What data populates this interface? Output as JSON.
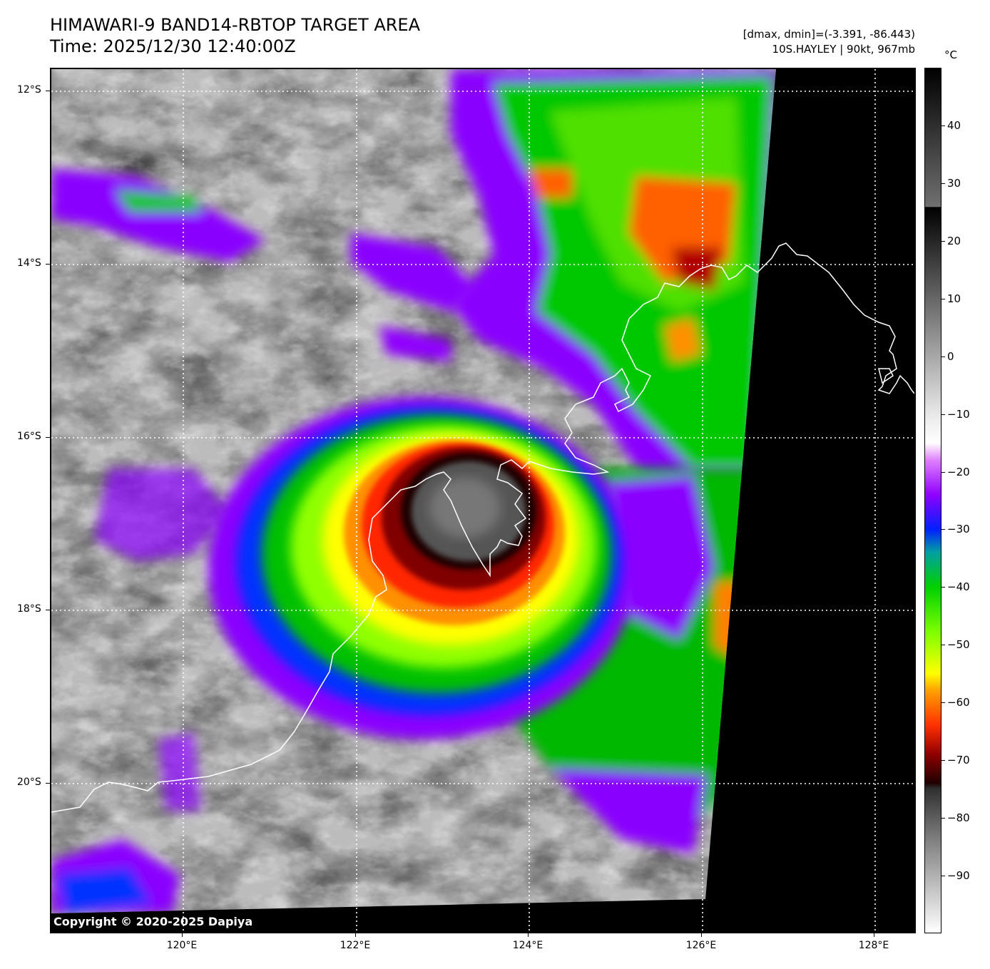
{
  "header": {
    "title_line1": "HIMAWARI-9 BAND14-RBTOP TARGET AREA",
    "title_line2": "Time: 2025/12/30 12:40:00Z",
    "range_text": "[dmax, dmin]=(-3.391, -86.443)",
    "storm_text": "10S.HAYLEY | 90kt, 967mb"
  },
  "map": {
    "copyright": "Copyright © 2020-2025 Dapiya",
    "lat_labels": [
      "12°S",
      "14°S",
      "16°S",
      "18°S",
      "20°S"
    ],
    "lon_labels": [
      "120°E",
      "122°E",
      "124°E",
      "126°E",
      "128°E"
    ],
    "no_data_color": "#000000",
    "coastline_color": "#ffffff",
    "grid_color": "#ffffff"
  },
  "colorbar": {
    "unit": "°C",
    "labels": [
      "40",
      "30",
      "20",
      "10",
      "0",
      "−10",
      "−20",
      "−30",
      "−40",
      "−50",
      "−60",
      "−70",
      "−80",
      "−90"
    ],
    "range": [
      -100,
      50
    ],
    "stops": [
      {
        "value": 50,
        "color": "#000000"
      },
      {
        "value": 26,
        "color": "#707070"
      },
      {
        "value": 25.9,
        "color": "#000000"
      },
      {
        "value": -10,
        "color": "#e8e8e8"
      },
      {
        "value": -15,
        "color": "#ffffff"
      },
      {
        "value": -18,
        "color": "#e080ff"
      },
      {
        "value": -24,
        "color": "#9000ff"
      },
      {
        "value": -30,
        "color": "#0020ff"
      },
      {
        "value": -34,
        "color": "#00a0a0"
      },
      {
        "value": -40,
        "color": "#00d000"
      },
      {
        "value": -48,
        "color": "#80ff00"
      },
      {
        "value": -55,
        "color": "#ffff00"
      },
      {
        "value": -58,
        "color": "#ffa000"
      },
      {
        "value": -64,
        "color": "#ff3000"
      },
      {
        "value": -69,
        "color": "#900000"
      },
      {
        "value": -74,
        "color": "#200000"
      },
      {
        "value": -75,
        "color": "#303030"
      },
      {
        "value": -84,
        "color": "#808080"
      },
      {
        "value": -100,
        "color": "#ffffff"
      }
    ]
  }
}
